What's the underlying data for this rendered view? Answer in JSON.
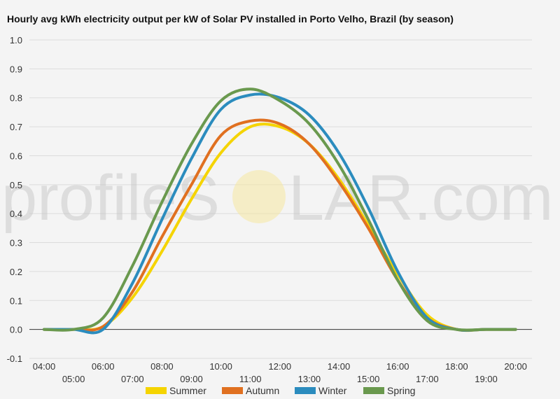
{
  "watermark": {
    "left": "profileS",
    "sun": "O",
    "right": "LAR.com"
  },
  "chart_data": {
    "type": "line",
    "title": "Hourly avg kWh electricity output per kW of Solar PV installed in Porto Velho, Brazil (by season)",
    "xlabel": "",
    "ylabel": "",
    "x": [
      "04:00",
      "05:00",
      "06:00",
      "07:00",
      "08:00",
      "09:00",
      "10:00",
      "11:00",
      "12:00",
      "13:00",
      "14:00",
      "15:00",
      "16:00",
      "17:00",
      "18:00",
      "19:00",
      "20:00"
    ],
    "x_tick_labels_upper": [
      "04:00",
      "06:00",
      "08:00",
      "10:00",
      "12:00",
      "14:00",
      "16:00",
      "18:00",
      "20:00"
    ],
    "x_tick_labels_lower": [
      "05:00",
      "07:00",
      "09:00",
      "11:00",
      "13:00",
      "15:00",
      "17:00",
      "19:00"
    ],
    "ylim": [
      -0.1,
      1.0
    ],
    "y_ticks": [
      "-0.1",
      "0.0",
      "0.1",
      "0.2",
      "0.3",
      "0.4",
      "0.5",
      "0.6",
      "0.7",
      "0.8",
      "0.9",
      "1.0"
    ],
    "grid": true,
    "legend": "bottom",
    "series": [
      {
        "name": "Summer",
        "color": "#f5d400",
        "values": [
          0,
          0,
          0.01,
          0.11,
          0.27,
          0.45,
          0.61,
          0.7,
          0.7,
          0.64,
          0.52,
          0.36,
          0.19,
          0.05,
          0.0,
          0.0,
          0.0
        ]
      },
      {
        "name": "Autumn",
        "color": "#e07020",
        "values": [
          0,
          0,
          0.01,
          0.13,
          0.32,
          0.5,
          0.67,
          0.72,
          0.71,
          0.64,
          0.51,
          0.35,
          0.17,
          0.04,
          0.0,
          0.0,
          0.0
        ]
      },
      {
        "name": "Winter",
        "color": "#2b8cbe",
        "values": [
          0,
          0,
          0.0,
          0.16,
          0.38,
          0.59,
          0.76,
          0.81,
          0.8,
          0.74,
          0.61,
          0.42,
          0.2,
          0.04,
          0.0,
          0.0,
          0.0
        ]
      },
      {
        "name": "Spring",
        "color": "#6a994e",
        "values": [
          0,
          0,
          0.04,
          0.22,
          0.44,
          0.64,
          0.79,
          0.83,
          0.79,
          0.71,
          0.57,
          0.38,
          0.17,
          0.03,
          0.0,
          0.0,
          0.0
        ]
      }
    ]
  }
}
